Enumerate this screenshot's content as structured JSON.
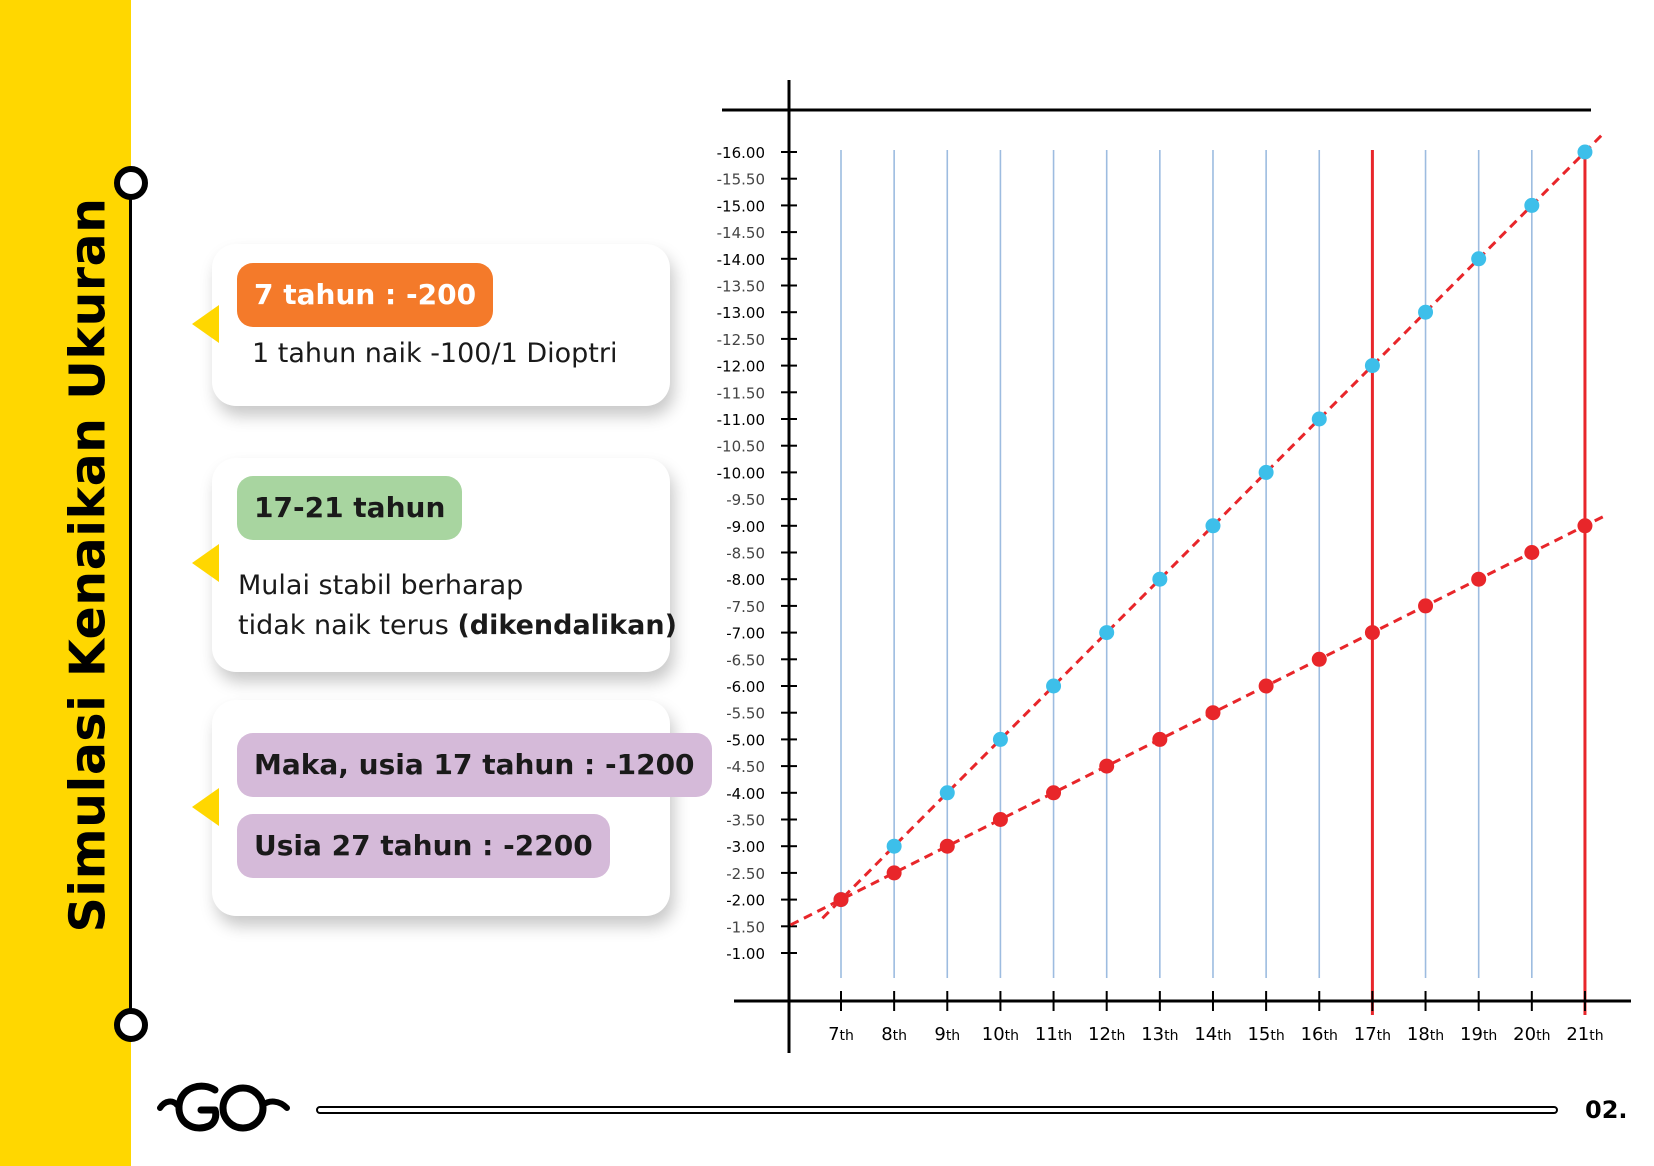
{
  "sidebar": {
    "title": "Simulasi Kenaikan Ukuran"
  },
  "cards": [
    {
      "pill_label": "7 tahun : -200",
      "text": "1 tahun naik -100/1 Dioptri"
    },
    {
      "pill_label": "17-21 tahun",
      "text_line1": "Mulai stabil berharap",
      "text_line2_plain": "tidak naik terus ",
      "text_line2_bold": "(dikendalikan)"
    },
    {
      "pill_label_1": "Maka, usia 17 tahun : -1200",
      "pill_label_2": "Usia 27 tahun : -2200"
    }
  ],
  "footer": {
    "logo": "GO",
    "page_number": "02."
  },
  "colors": {
    "sidebar": "#FFD700",
    "pill_orange": "#F47A2A",
    "pill_green": "#A8D5A0",
    "pill_purple": "#D5BAD9",
    "series_blue": "#3DBFEA",
    "series_red": "#E8262A",
    "grid_blue": "#9DBCE0",
    "highlight_red": "#E8262A"
  },
  "chart_data": {
    "type": "line",
    "x_categories": [
      "7th",
      "8th",
      "9th",
      "10th",
      "11th",
      "12th",
      "13th",
      "14th",
      "15th",
      "16th",
      "17th",
      "18th",
      "19th",
      "20th",
      "21st"
    ],
    "x_tick_labels": [
      {
        "num": "7",
        "suffix": "th"
      },
      {
        "num": "8",
        "suffix": "th"
      },
      {
        "num": "9",
        "suffix": "th"
      },
      {
        "num": "10",
        "suffix": "th"
      },
      {
        "num": "11",
        "suffix": "th"
      },
      {
        "num": "12",
        "suffix": "th"
      },
      {
        "num": "13",
        "suffix": "th"
      },
      {
        "num": "14",
        "suffix": "th"
      },
      {
        "num": "15",
        "suffix": "th"
      },
      {
        "num": "16",
        "suffix": "th"
      },
      {
        "num": "17",
        "suffix": "th"
      },
      {
        "num": "18",
        "suffix": "th"
      },
      {
        "num": "19",
        "suffix": "th"
      },
      {
        "num": "20",
        "suffix": "th"
      },
      {
        "num": "21",
        "suffix": "th"
      }
    ],
    "y_ticks": [
      "-1.00",
      "-1.50",
      "-2.00",
      "-2.50",
      "-3.00",
      "-3.50",
      "-4.00",
      "-4.50",
      "-5.00",
      "-5.50",
      "-6.00",
      "-6.50",
      "-7.00",
      "-7.50",
      "-8.00",
      "-8.50",
      "-9.00",
      "-9.50",
      "-10.00",
      "-10.50",
      "-11.00",
      "-11.50",
      "-12.00",
      "-12.50",
      "-13.00",
      "-13.50",
      "-14.00",
      "-14.50",
      "-15.00",
      "-15.50",
      "-16.00"
    ],
    "ylim": [
      -1,
      -16
    ],
    "series": [
      {
        "values": [
          -2,
          -3,
          -4,
          -5,
          -6,
          -7,
          -8,
          -9,
          -10,
          -11,
          -12,
          -13,
          -14,
          -15,
          -16
        ]
      },
      {
        "values": [
          -2,
          -2.5,
          -3,
          -3.5,
          -4,
          -4.5,
          -5,
          -5.5,
          -6,
          -6.5,
          -7,
          -7.5,
          -8,
          -8.5,
          -9
        ]
      }
    ],
    "highlighted_x": [
      "17th",
      "21st"
    ],
    "grid": true,
    "legend": "none"
  }
}
